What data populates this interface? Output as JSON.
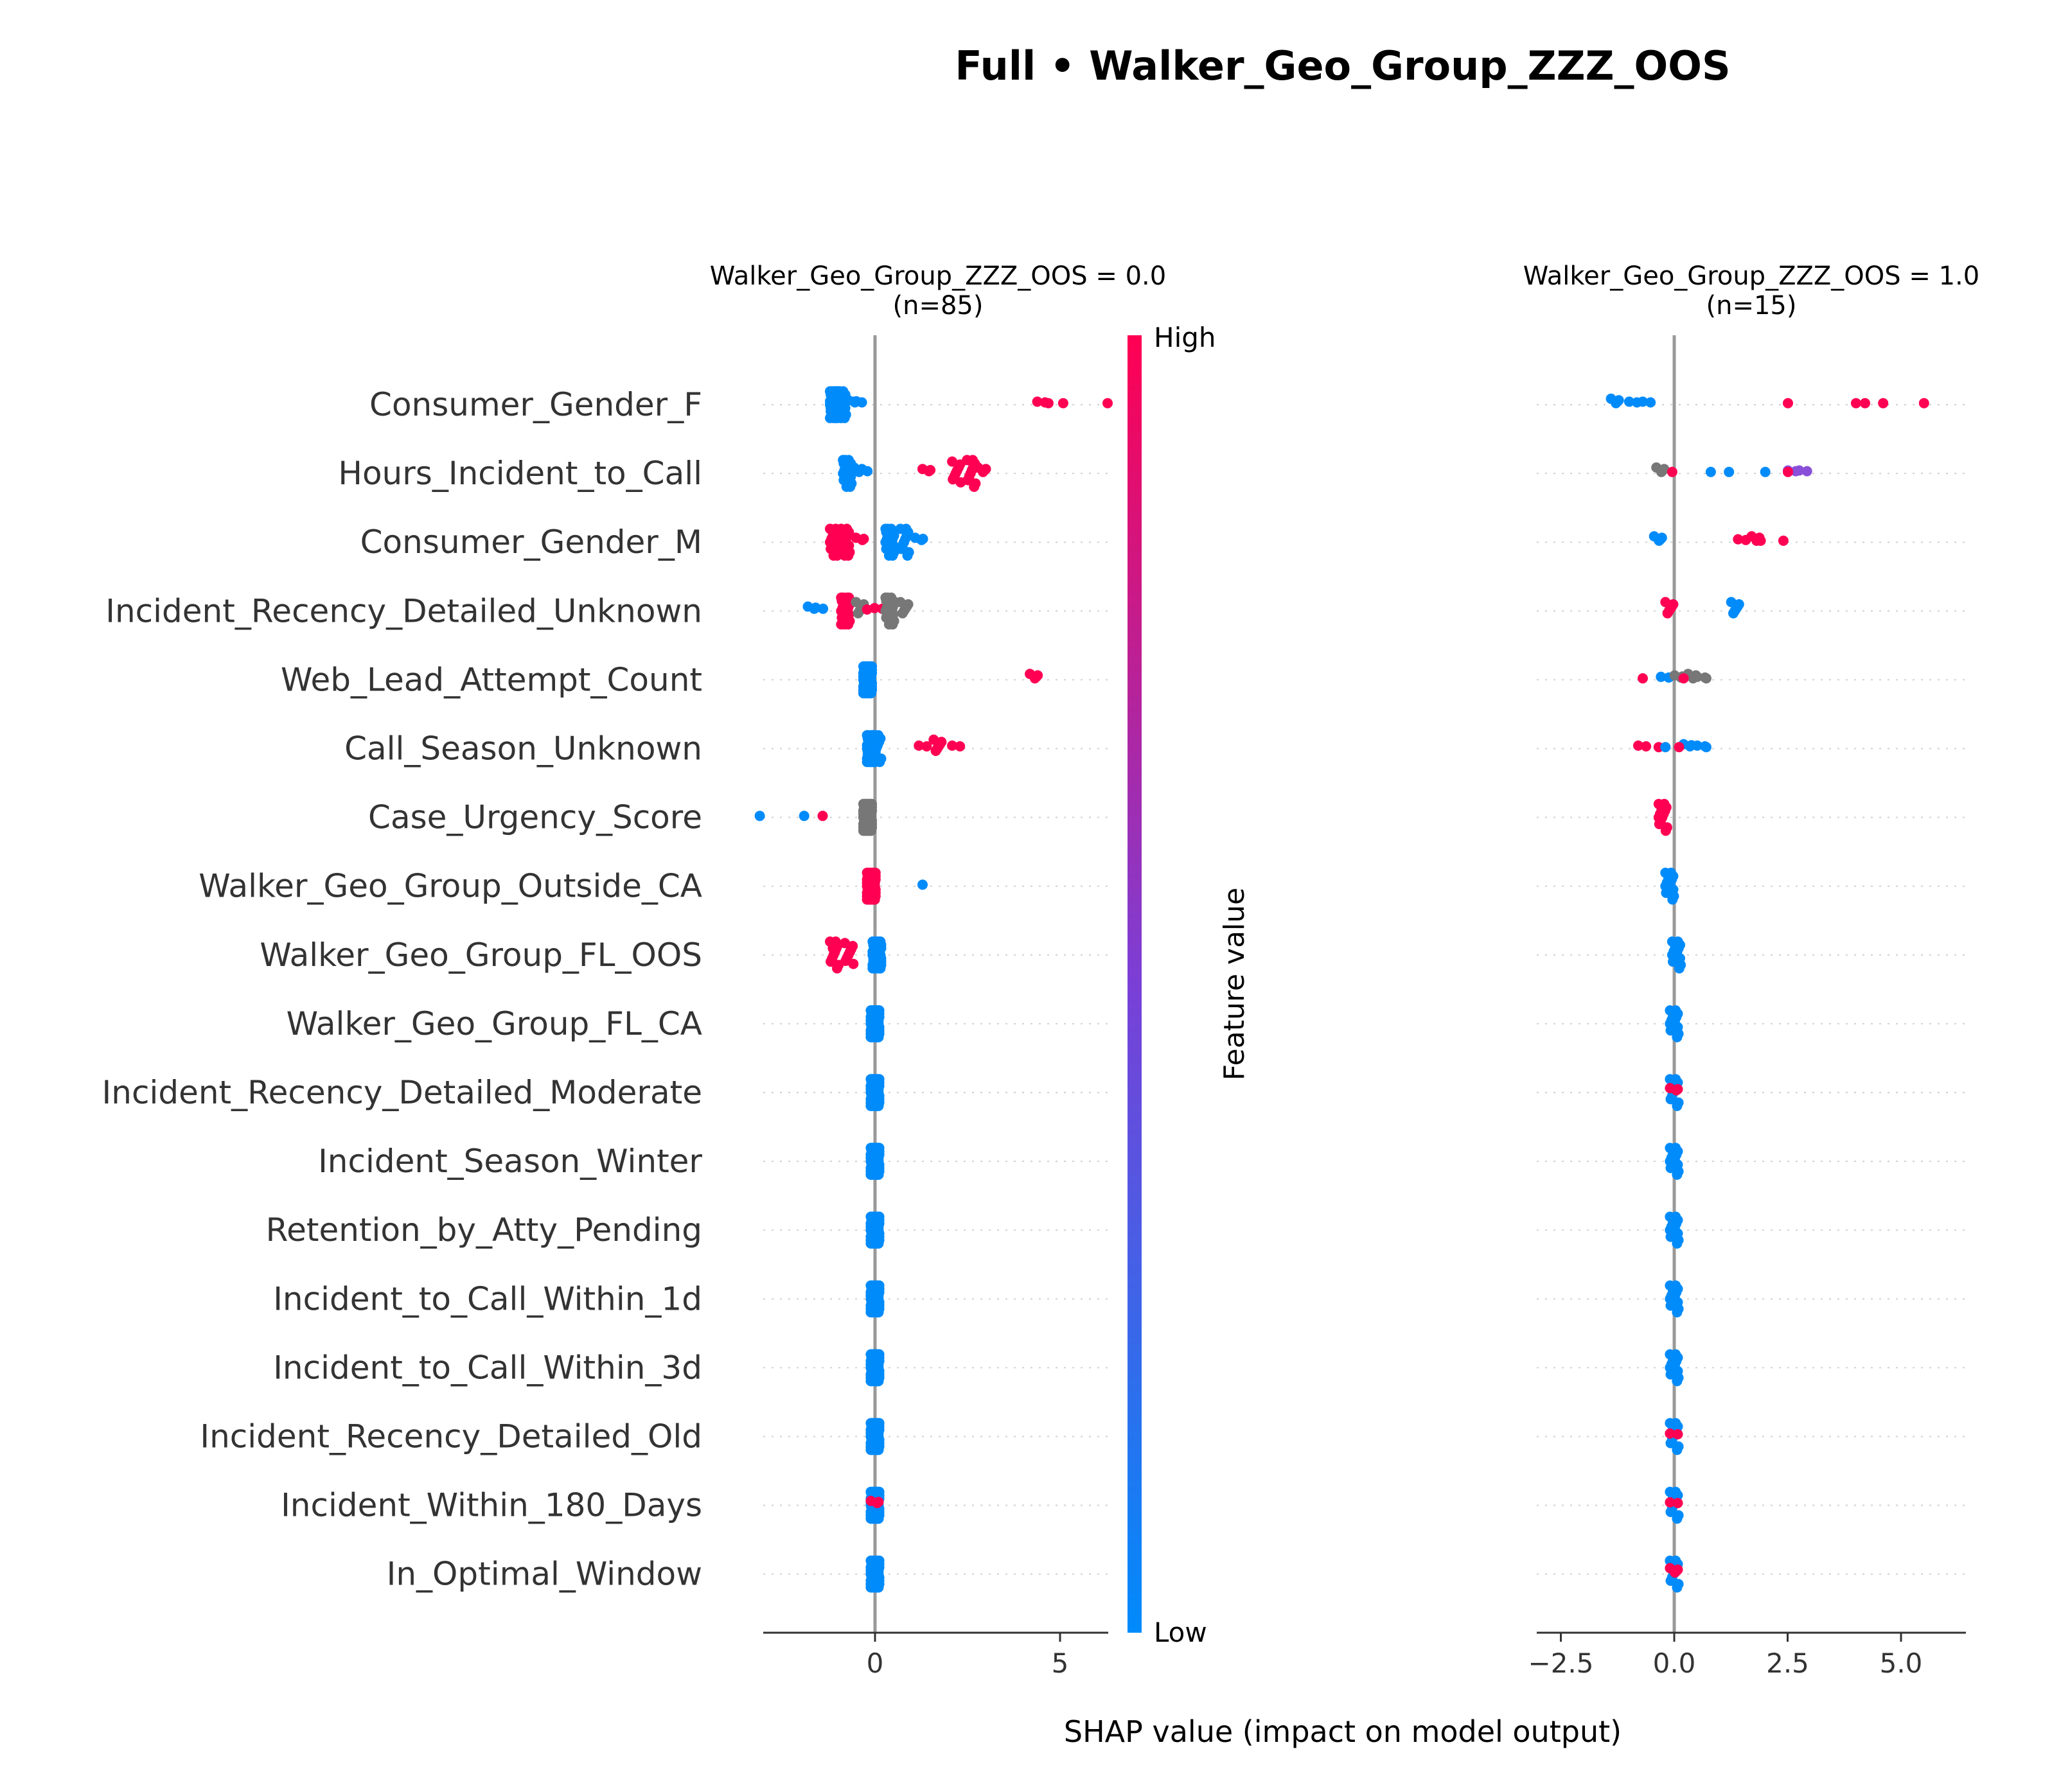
{
  "title": "Full • Walker_Geo_Group_ZZZ_OOS",
  "xlabel": "SHAP value (impact on model output)",
  "features": [
    "Consumer_Gender_F",
    "Hours_Incident_to_Call",
    "Consumer_Gender_M",
    "Incident_Recency_Detailed_Unknown",
    "Web_Lead_Attempt_Count",
    "Call_Season_Unknown",
    "Case_Urgency_Score",
    "Walker_Geo_Group_Outside_CA",
    "Walker_Geo_Group_FL_OOS",
    "Walker_Geo_Group_FL_CA",
    "Incident_Recency_Detailed_Moderate",
    "Incident_Season_Winter",
    "Retention_by_Atty_Pending",
    "Incident_to_Call_Within_1d",
    "Incident_to_Call_Within_3d",
    "Incident_Recency_Detailed_Old",
    "Incident_Within_180_Days",
    "In_Optimal_Window"
  ],
  "colorbar": {
    "high_label": "High",
    "low_label": "Low",
    "title": "Feature value",
    "high_color": "#ff0052",
    "low_color": "#008bfb",
    "missing_color": "#777777"
  },
  "chart_data": [
    {
      "type": "scatter",
      "subtitle": "Walker_Geo_Group_ZZZ_OOS = 0.0\n(n=85)",
      "xlim": [
        -3,
        6.5
      ],
      "xticks": [
        0,
        5
      ],
      "xtick_labels": [
        "0",
        "5"
      ],
      "rows": [
        {
          "points": [
            [
              -1.1,
              "low",
              40
            ],
            [
              -0.9,
              "low",
              20
            ],
            [
              -0.6,
              "low",
              3
            ],
            [
              -0.45,
              "low",
              2
            ],
            [
              4.5,
              "high",
              2
            ],
            [
              4.8,
              "high",
              1
            ],
            [
              5.2,
              "high",
              1
            ],
            [
              6.4,
              "high",
              1
            ]
          ]
        },
        {
          "points": [
            [
              -0.75,
              "low",
              25
            ],
            [
              -0.45,
              "low",
              4
            ],
            [
              -0.3,
              "low",
              2
            ],
            [
              1.4,
              "high",
              3
            ],
            [
              2.2,
              "high",
              8
            ],
            [
              2.6,
              "high",
              10
            ],
            [
              2.9,
              "high",
              4
            ]
          ]
        },
        {
          "points": [
            [
              -1.1,
              "high",
              18
            ],
            [
              -0.8,
              "high",
              18
            ],
            [
              -0.4,
              "high",
              3
            ],
            [
              0.4,
              "low",
              25
            ],
            [
              0.8,
              "low",
              10
            ],
            [
              1.2,
              "low",
              3
            ]
          ]
        },
        {
          "points": [
            [
              -1.7,
              "low",
              3
            ],
            [
              -1.5,
              "low",
              2
            ],
            [
              -0.8,
              "high",
              30
            ],
            [
              -0.4,
              "missing",
              6
            ],
            [
              -0.1,
              "high",
              1
            ],
            [
              0.1,
              "high",
              2
            ],
            [
              0.4,
              "missing",
              22
            ],
            [
              0.8,
              "missing",
              6
            ]
          ]
        },
        {
          "points": [
            [
              -0.2,
              "low",
              80
            ],
            [
              4.3,
              "high",
              4
            ]
          ]
        },
        {
          "points": [
            [
              -0.1,
              "low",
              60
            ],
            [
              0.05,
              "low",
              10
            ],
            [
              1.3,
              "high",
              2
            ],
            [
              1.7,
              "high",
              6
            ],
            [
              2.2,
              "high",
              2
            ]
          ]
        },
        {
          "points": [
            [
              -3.0,
              "low",
              1
            ],
            [
              -1.8,
              "low",
              1
            ],
            [
              -1.3,
              "high",
              1
            ],
            [
              -0.2,
              "missing",
              80
            ]
          ]
        },
        {
          "points": [
            [
              -0.1,
              "high",
              80
            ],
            [
              1.4,
              "low",
              1
            ]
          ]
        },
        {
          "points": [
            [
              -1.1,
              "high",
              12
            ],
            [
              -0.7,
              "high",
              8
            ],
            [
              0.05,
              "low",
              60
            ]
          ]
        },
        {
          "points": [
            [
              0.0,
              "low",
              85
            ]
          ]
        },
        {
          "points": [
            [
              0.0,
              "low",
              85
            ]
          ]
        },
        {
          "points": [
            [
              0.0,
              "low",
              85
            ]
          ]
        },
        {
          "points": [
            [
              0.0,
              "low",
              85
            ]
          ]
        },
        {
          "points": [
            [
              0.0,
              "low",
              85
            ]
          ]
        },
        {
          "points": [
            [
              0.0,
              "low",
              85
            ]
          ]
        },
        {
          "points": [
            [
              0.0,
              "low",
              85
            ]
          ]
        },
        {
          "points": [
            [
              0.0,
              "low",
              82
            ],
            [
              0.0,
              "high",
              3
            ]
          ]
        },
        {
          "points": [
            [
              0.0,
              "low",
              85
            ]
          ]
        }
      ]
    },
    {
      "type": "scatter",
      "subtitle": "Walker_Geo_Group_ZZZ_OOS = 1.0\n(n=15)",
      "xlim": [
        -3,
        6.5
      ],
      "xticks": [
        -2.5,
        0.0,
        2.5,
        5.0
      ],
      "xtick_labels": [
        "−2.5",
        "0.0",
        "2.5",
        "5.0"
      ],
      "rows": [
        {
          "points": [
            [
              -1.3,
              "low",
              4
            ],
            [
              -0.9,
              "low",
              2
            ],
            [
              -0.6,
              "low",
              2
            ],
            [
              2.6,
              "high",
              1
            ],
            [
              4.1,
              "high",
              1
            ],
            [
              4.3,
              "high",
              1
            ],
            [
              4.7,
              "high",
              1
            ],
            [
              5.6,
              "high",
              1
            ]
          ]
        },
        {
          "points": [
            [
              -0.3,
              "missing",
              4
            ],
            [
              0.05,
              "high",
              1
            ],
            [
              0.9,
              "low",
              1
            ],
            [
              1.3,
              "low",
              1
            ],
            [
              2.1,
              "low",
              1
            ],
            [
              2.6,
              "mid",
              2
            ],
            [
              2.85,
              "mid",
              2
            ],
            [
              2.6,
              "high",
              1
            ]
          ]
        },
        {
          "points": [
            [
              -0.35,
              "low",
              4
            ],
            [
              1.5,
              "high",
              2
            ],
            [
              1.8,
              "high",
              4
            ],
            [
              2.0,
              "high",
              1
            ],
            [
              2.5,
              "high",
              1
            ]
          ]
        },
        {
          "points": [
            [
              -0.1,
              "high",
              6
            ],
            [
              1.35,
              "low",
              6
            ]
          ]
        },
        {
          "points": [
            [
              -0.6,
              "high",
              1
            ],
            [
              -0.2,
              "low",
              2
            ],
            [
              0.1,
              "missing",
              3
            ],
            [
              0.4,
              "missing",
              4
            ],
            [
              0.3,
              "high",
              1
            ],
            [
              0.8,
              "missing",
              1
            ],
            [
              0.6,
              "missing",
              2
            ]
          ]
        },
        {
          "points": [
            [
              -0.7,
              "high",
              2
            ],
            [
              -0.25,
              "high",
              1
            ],
            [
              -0.1,
              "low",
              1
            ],
            [
              0.3,
              "low",
              3
            ],
            [
              0.6,
              "low",
              2
            ],
            [
              0.2,
              "high",
              1
            ],
            [
              0.8,
              "low",
              1
            ]
          ]
        },
        {
          "points": [
            [
              -0.25,
              "high",
              14
            ]
          ]
        },
        {
          "points": [
            [
              -0.1,
              "low",
              15
            ]
          ]
        },
        {
          "points": [
            [
              0.05,
              "low",
              15
            ]
          ]
        },
        {
          "points": [
            [
              0.0,
              "low",
              15
            ]
          ]
        },
        {
          "points": [
            [
              0.0,
              "low",
              12
            ],
            [
              0.0,
              "high",
              3
            ]
          ]
        },
        {
          "points": [
            [
              0.0,
              "low",
              15
            ]
          ]
        },
        {
          "points": [
            [
              0.0,
              "low",
              15
            ]
          ]
        },
        {
          "points": [
            [
              0.0,
              "low",
              15
            ]
          ]
        },
        {
          "points": [
            [
              0.0,
              "low",
              15
            ]
          ]
        },
        {
          "points": [
            [
              0.0,
              "low",
              13
            ],
            [
              0.0,
              "high",
              2
            ]
          ]
        },
        {
          "points": [
            [
              0.0,
              "low",
              13
            ],
            [
              0.0,
              "high",
              2
            ]
          ]
        },
        {
          "points": [
            [
              0.0,
              "low",
              11
            ],
            [
              0.0,
              "high",
              4
            ]
          ]
        }
      ]
    }
  ]
}
